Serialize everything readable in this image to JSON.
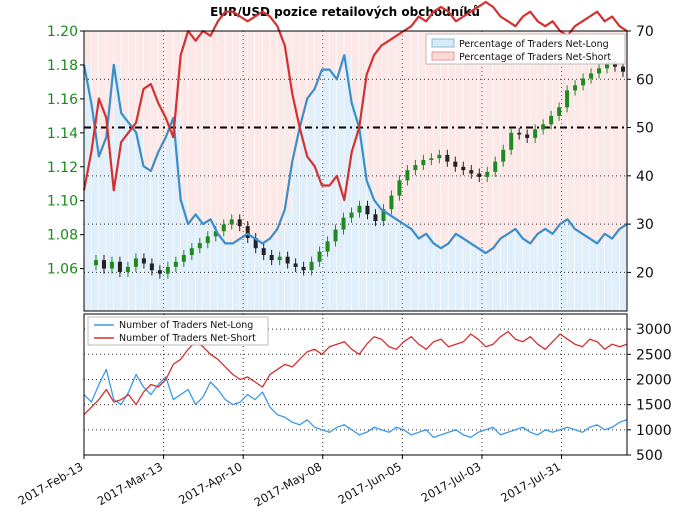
{
  "chart_data": {
    "type": "line",
    "title": "EUR/USD pozice retailových obchodníků",
    "x_ticks": [
      "2017-Feb-13",
      "2017-Mar-13",
      "2017-Apr-10",
      "2017-May-08",
      "2017-Jun-05",
      "2017-Jul-03",
      "2017-Jul-31"
    ],
    "upper_panel": {
      "left_axis": {
        "ylim": [
          1.035,
          1.2
        ],
        "ticks": [
          "1.06",
          "1.08",
          "1.10",
          "1.12",
          "1.14",
          "1.16",
          "1.18",
          "1.20"
        ],
        "color": "#1a8a1a"
      },
      "right_axis": {
        "ylim": [
          12,
          70
        ],
        "ticks": [
          "20",
          "30",
          "40",
          "50",
          "60",
          "70"
        ]
      },
      "reference_line": 50,
      "price_candles": {
        "name": "EUR/USD",
        "open_close_approx": [
          1.062,
          1.065,
          1.06,
          1.064,
          1.058,
          1.061,
          1.066,
          1.063,
          1.059,
          1.057,
          1.061,
          1.064,
          1.068,
          1.072,
          1.075,
          1.079,
          1.082,
          1.086,
          1.089,
          1.085,
          1.078,
          1.072,
          1.068,
          1.065,
          1.067,
          1.063,
          1.061,
          1.059,
          1.064,
          1.07,
          1.076,
          1.083,
          1.09,
          1.093,
          1.097,
          1.092,
          1.088,
          1.095,
          1.103,
          1.112,
          1.118,
          1.121,
          1.124,
          1.125,
          1.127,
          1.123,
          1.12,
          1.118,
          1.116,
          1.114,
          1.117,
          1.123,
          1.13,
          1.14,
          1.139,
          1.137,
          1.142,
          1.145,
          1.15,
          1.155,
          1.165,
          1.168,
          1.172,
          1.175,
          1.178,
          1.182,
          1.179,
          1.176
        ]
      },
      "series": [
        {
          "name": "Percentage of Traders Net-Long",
          "color": "#3d8dc8",
          "values": [
            63,
            55,
            44,
            48,
            63,
            53,
            51,
            49,
            42,
            41,
            45,
            48,
            52,
            35,
            30,
            32,
            30,
            31,
            28,
            26,
            26,
            27,
            28,
            27,
            26,
            27,
            29,
            33,
            43,
            50,
            56,
            58,
            62,
            62,
            60,
            65,
            55,
            50,
            39,
            35,
            33,
            32,
            31,
            30,
            29,
            27,
            28,
            26,
            25,
            26,
            28,
            27,
            26,
            25,
            24,
            25,
            27,
            28,
            29,
            27,
            26,
            28,
            29,
            28,
            30,
            31,
            29,
            28,
            27,
            26,
            28,
            27,
            29,
            30
          ]
        },
        {
          "name": "Percentage of Traders Net-Short",
          "color": "#d43030",
          "values": [
            37,
            45,
            56,
            52,
            37,
            47,
            49,
            51,
            58,
            59,
            55,
            52,
            48,
            65,
            70,
            68,
            70,
            69,
            72,
            74,
            74,
            73,
            72,
            73,
            74,
            73,
            71,
            67,
            57,
            50,
            44,
            42,
            38,
            38,
            40,
            35,
            45,
            50,
            61,
            65,
            67,
            68,
            69,
            70,
            71,
            73,
            72,
            74,
            75,
            74,
            72,
            73,
            74,
            75,
            76,
            75,
            73,
            72,
            71,
            73,
            74,
            72,
            71,
            72,
            70,
            69,
            71,
            72,
            73,
            74,
            72,
            73,
            71,
            70
          ]
        }
      ],
      "legend_position": "top-right"
    },
    "lower_panel": {
      "right_axis": {
        "ylim": [
          500,
          3300
        ],
        "ticks": [
          "500",
          "1000",
          "1500",
          "2000",
          "2500",
          "3000"
        ]
      },
      "series": [
        {
          "name": "Number of Traders Net-Long",
          "color": "#3d9ae8",
          "values": [
            1700,
            1550,
            1900,
            2200,
            1600,
            1500,
            1750,
            2100,
            1850,
            1700,
            1900,
            2050,
            1600,
            1700,
            1800,
            1500,
            1650,
            1950,
            1800,
            1600,
            1500,
            1550,
            1700,
            1600,
            1750,
            1450,
            1300,
            1250,
            1150,
            1100,
            1200,
            1050,
            1000,
            950,
            1050,
            1100,
            1000,
            900,
            950,
            1050,
            1000,
            950,
            1050,
            1000,
            900,
            950,
            1000,
            850,
            900,
            950,
            1000,
            900,
            850,
            950,
            1000,
            1050,
            900,
            950,
            1000,
            1050,
            950,
            900,
            1000,
            950,
            1000,
            1050,
            1000,
            950,
            1050,
            1100,
            1000,
            1050,
            1150,
            1200
          ]
        },
        {
          "name": "Number of Traders Net-Short",
          "color": "#d43030",
          "values": [
            1300,
            1450,
            1600,
            1800,
            1550,
            1600,
            1700,
            1500,
            1750,
            1900,
            1850,
            2000,
            2300,
            2400,
            2600,
            2750,
            2650,
            2500,
            2400,
            2250,
            2100,
            2000,
            2050,
            1950,
            1850,
            2100,
            2200,
            2300,
            2250,
            2400,
            2550,
            2600,
            2500,
            2650,
            2700,
            2750,
            2600,
            2500,
            2700,
            2850,
            2800,
            2650,
            2600,
            2750,
            2850,
            2700,
            2600,
            2750,
            2800,
            2650,
            2700,
            2750,
            2900,
            2800,
            2650,
            2700,
            2850,
            2950,
            2800,
            2750,
            2850,
            2700,
            2600,
            2750,
            2900,
            2800,
            2700,
            2650,
            2800,
            2750,
            2600,
            2700,
            2650,
            2700
          ]
        }
      ],
      "legend_position": "top-left"
    }
  }
}
